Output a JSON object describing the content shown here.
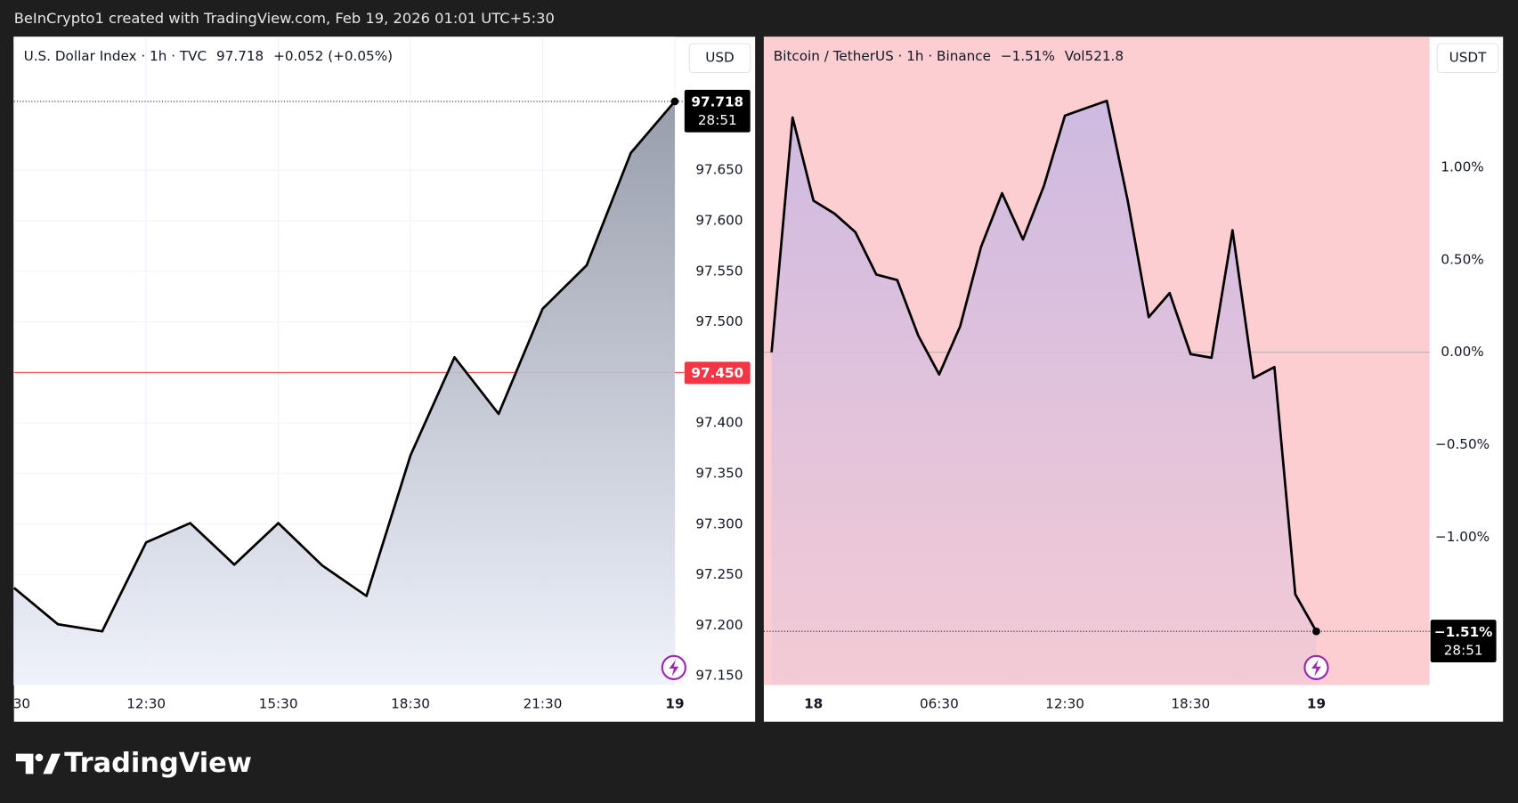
{
  "header": {
    "text": "BeInCrypto1 created with TradingView.com, Feb 19, 2026 01:01 UTC+5:30"
  },
  "chart_data": [
    {
      "type": "line",
      "title": "U.S. Dollar Index · 1h · TVC",
      "quote": "97.718",
      "change": "+0.052 (+0.05%)",
      "currency": "USD",
      "categories": [
        "30",
        null,
        null,
        "12:30",
        null,
        null,
        "15:30",
        null,
        null,
        "18:30",
        null,
        null,
        "21:30",
        null,
        null,
        "19"
      ],
      "series": [
        {
          "color": "#000000",
          "values": [
            97.237,
            97.201,
            97.194,
            97.282,
            97.301,
            97.26,
            97.301,
            97.259,
            97.229,
            97.368,
            97.465,
            97.409,
            97.513,
            97.556,
            97.667,
            97.718
          ]
        }
      ],
      "ylim": [
        97.141,
        97.78
      ],
      "yticks": [
        {
          "value": 97.15,
          "label": "97.150"
        },
        {
          "value": 97.2,
          "label": "97.200"
        },
        {
          "value": 97.25,
          "label": "97.250"
        },
        {
          "value": 97.3,
          "label": "97.300"
        },
        {
          "value": 97.35,
          "label": "97.350"
        },
        {
          "value": 97.4,
          "label": "97.400"
        },
        {
          "value": 97.5,
          "label": "97.500"
        },
        {
          "value": 97.55,
          "label": "97.550"
        },
        {
          "value": 97.6,
          "label": "97.600"
        },
        {
          "value": 97.65,
          "label": "97.650"
        }
      ],
      "grid": true,
      "background": "#ffffff",
      "fill_top": "#8d93a3",
      "fill_bottom": "#eef1fb",
      "last_tag": {
        "value": 97.718,
        "label": "97.718"
      },
      "countdown": "28:51",
      "ref_line": {
        "value": 97.45,
        "label": "97.450",
        "color": "#f23645"
      }
    },
    {
      "type": "line",
      "title": "Bitcoin / TetherUS · 1h · Binance",
      "change": "−1.51%",
      "volume": "Vol521.8",
      "currency": "USDT",
      "categories": [
        null,
        null,
        "18",
        null,
        null,
        null,
        null,
        null,
        "06:30",
        null,
        null,
        null,
        null,
        null,
        "12:30",
        null,
        null,
        null,
        null,
        null,
        "18:30",
        null,
        null,
        null,
        null,
        null,
        "19"
      ],
      "series": [
        {
          "color": "#000000",
          "values": [
            0.0,
            1.27,
            0.82,
            0.75,
            0.65,
            0.42,
            0.39,
            0.09,
            -0.12,
            0.14,
            0.57,
            0.86,
            0.61,
            0.9,
            1.28,
            1.32,
            1.36,
            0.82,
            0.19,
            0.32,
            -0.01,
            -0.03,
            0.66,
            -0.14,
            -0.08,
            -1.31,
            -1.51
          ]
        }
      ],
      "ylim": [
        -1.8,
        1.696
      ],
      "yticks": [
        {
          "value": -1,
          "label": "−1.00%"
        },
        {
          "value": -0.5,
          "label": "−0.50%"
        },
        {
          "value": 0,
          "label": "0.00%"
        },
        {
          "value": 0.5,
          "label": "0.50%"
        },
        {
          "value": 1,
          "label": "1.00%"
        }
      ],
      "grid": false,
      "background": "#fccdd1",
      "fill_top": "#c9b8e3",
      "fill_bottom": "#f2cad6",
      "baseline": 0,
      "last_tag": {
        "value": -1.51,
        "label": "−1.51%"
      },
      "countdown": "28:51"
    }
  ],
  "footer": {
    "brand": "TradingView"
  }
}
